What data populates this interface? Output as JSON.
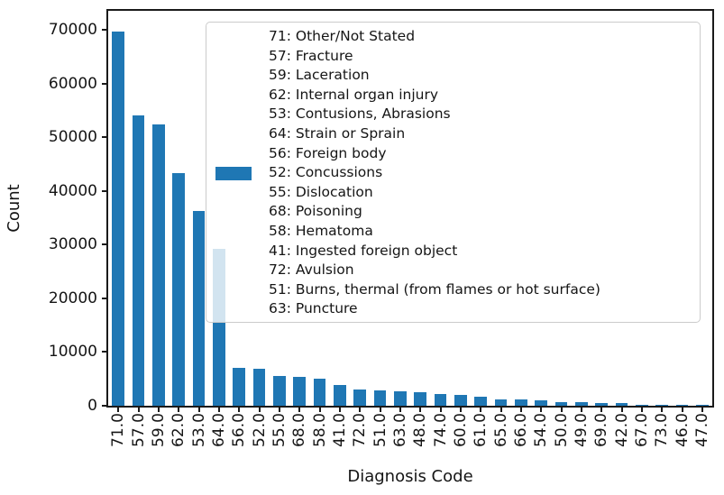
{
  "chart_data": {
    "type": "bar",
    "title": "",
    "xlabel": "Diagnosis Code",
    "ylabel": "Count",
    "categories": [
      "71.0",
      "57.0",
      "59.0",
      "62.0",
      "53.0",
      "64.0",
      "56.0",
      "52.0",
      "55.0",
      "68.0",
      "58.0",
      "41.0",
      "72.0",
      "51.0",
      "63.0",
      "48.0",
      "74.0",
      "60.0",
      "61.0",
      "65.0",
      "66.0",
      "54.0",
      "50.0",
      "49.0",
      "69.0",
      "42.0",
      "67.0",
      "73.0",
      "46.0",
      "47.0"
    ],
    "values": [
      69700,
      54100,
      52400,
      43300,
      36300,
      29300,
      7100,
      6900,
      5600,
      5300,
      5000,
      3800,
      2950,
      2850,
      2700,
      2600,
      2150,
      1950,
      1750,
      1250,
      1100,
      950,
      700,
      650,
      500,
      450,
      250,
      200,
      150,
      120
    ],
    "ylim": [
      0,
      73500
    ],
    "yticks": [
      0,
      10000,
      20000,
      30000,
      40000,
      50000,
      60000,
      70000
    ],
    "grid": false,
    "bar_color": "#1f77b4",
    "spine_color": "#1a1a1a",
    "legend": {
      "position": "upper right",
      "swatch_line_index": 7,
      "lines": [
        "71: Other/Not Stated",
        "57: Fracture",
        "59: Laceration",
        "62: Internal organ injury",
        "53: Contusions, Abrasions",
        "64: Strain or Sprain",
        "56: Foreign body",
        "52: Concussions",
        "55: Dislocation",
        "68: Poisoning",
        "58: Hematoma",
        "41: Ingested foreign object",
        "72: Avulsion",
        "51: Burns, thermal (from flames or hot surface)",
        "63: Puncture"
      ]
    }
  }
}
